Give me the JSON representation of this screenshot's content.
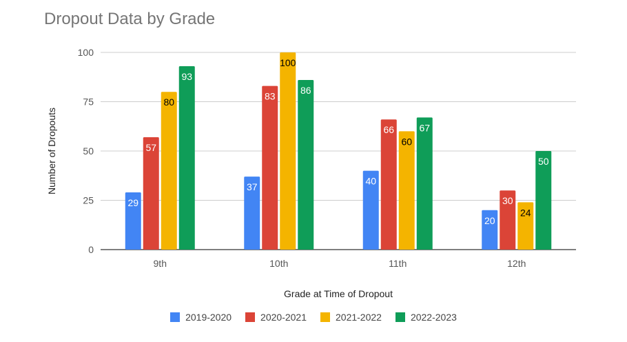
{
  "chart_data": {
    "type": "bar",
    "title": "Dropout Data by Grade",
    "xlabel": "Grade at Time of Dropout",
    "ylabel": "Number of Dropouts",
    "ylim": [
      0,
      100
    ],
    "yticks": [
      "0",
      "25",
      "50",
      "75",
      "100"
    ],
    "categories": [
      "9th",
      "10th",
      "11th",
      "12th"
    ],
    "legend_position": "bottom",
    "grid": true,
    "series": [
      {
        "name": "2019-2020",
        "color": "#4285f4",
        "label_color": "#ffffff",
        "values": [
          29,
          37,
          40,
          20
        ]
      },
      {
        "name": "2020-2021",
        "color": "#db4437",
        "label_color": "#ffffff",
        "values": [
          57,
          83,
          66,
          30
        ]
      },
      {
        "name": "2021-2022",
        "color": "#f4b400",
        "label_color": "#000000",
        "values": [
          80,
          100,
          60,
          24
        ]
      },
      {
        "name": "2022-2023",
        "color": "#0f9d58",
        "label_color": "#ffffff",
        "values": [
          93,
          86,
          67,
          50
        ]
      }
    ]
  }
}
